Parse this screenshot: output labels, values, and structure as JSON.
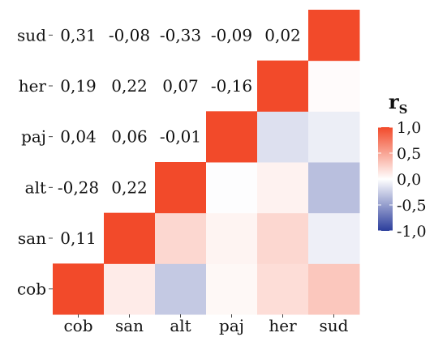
{
  "chart_data": {
    "type": "heatmap",
    "title": "",
    "xlabel": "",
    "ylabel": "",
    "variables": [
      "cob",
      "san",
      "alt",
      "paj",
      "her",
      "sud"
    ],
    "x_ticks": [
      "cob",
      "san",
      "alt",
      "paj",
      "her",
      "sud"
    ],
    "y_ticks_top_to_bottom": [
      "sud",
      "her",
      "paj",
      "alt",
      "san",
      "cob"
    ],
    "cells": [
      {
        "row": "cob",
        "col": "cob",
        "value": 1.0
      },
      {
        "row": "cob",
        "col": "san",
        "value": 0.11
      },
      {
        "row": "cob",
        "col": "alt",
        "value": -0.28
      },
      {
        "row": "cob",
        "col": "paj",
        "value": 0.04
      },
      {
        "row": "cob",
        "col": "her",
        "value": 0.19
      },
      {
        "row": "cob",
        "col": "sud",
        "value": 0.31
      },
      {
        "row": "san",
        "col": "cob",
        "value": 0.11
      },
      {
        "row": "san",
        "col": "san",
        "value": 1.0
      },
      {
        "row": "san",
        "col": "alt",
        "value": 0.22
      },
      {
        "row": "san",
        "col": "paj",
        "value": 0.06
      },
      {
        "row": "san",
        "col": "her",
        "value": 0.22
      },
      {
        "row": "san",
        "col": "sud",
        "value": -0.08
      },
      {
        "row": "alt",
        "col": "cob",
        "value": -0.28
      },
      {
        "row": "alt",
        "col": "san",
        "value": 0.22
      },
      {
        "row": "alt",
        "col": "alt",
        "value": 1.0
      },
      {
        "row": "alt",
        "col": "paj",
        "value": -0.01
      },
      {
        "row": "alt",
        "col": "her",
        "value": 0.07
      },
      {
        "row": "alt",
        "col": "sud",
        "value": -0.33
      },
      {
        "row": "paj",
        "col": "cob",
        "value": 0.04
      },
      {
        "row": "paj",
        "col": "san",
        "value": 0.06
      },
      {
        "row": "paj",
        "col": "alt",
        "value": -0.01
      },
      {
        "row": "paj",
        "col": "paj",
        "value": 1.0
      },
      {
        "row": "paj",
        "col": "her",
        "value": -0.16
      },
      {
        "row": "paj",
        "col": "sud",
        "value": -0.09
      },
      {
        "row": "her",
        "col": "cob",
        "value": 0.19
      },
      {
        "row": "her",
        "col": "san",
        "value": 0.22
      },
      {
        "row": "her",
        "col": "alt",
        "value": 0.07
      },
      {
        "row": "her",
        "col": "paj",
        "value": -0.16
      },
      {
        "row": "her",
        "col": "her",
        "value": 1.0
      },
      {
        "row": "her",
        "col": "sud",
        "value": 0.02
      },
      {
        "row": "sud",
        "col": "cob",
        "value": 0.31
      },
      {
        "row": "sud",
        "col": "san",
        "value": -0.08
      },
      {
        "row": "sud",
        "col": "alt",
        "value": -0.33
      },
      {
        "row": "sud",
        "col": "paj",
        "value": -0.09
      },
      {
        "row": "sud",
        "col": "her",
        "value": 0.02
      },
      {
        "row": "sud",
        "col": "sud",
        "value": 1.0
      }
    ],
    "value_labels_shown": "upper-left triangle (text), lower-right triangle (color)",
    "color_scale": {
      "min": -1.0,
      "max": 1.0,
      "low_color": "#2b3d9c",
      "mid_color": "#ffffff",
      "high_color": "#f24a2a"
    },
    "legend": {
      "title": "r",
      "title_subscript": "S",
      "ticks": [
        "1,0",
        "0,5",
        "0,0",
        "-0,5",
        "-1,0"
      ],
      "tick_values": [
        1.0,
        0.5,
        0.0,
        -0.5,
        -1.0
      ],
      "position": "right"
    },
    "grid": false
  }
}
